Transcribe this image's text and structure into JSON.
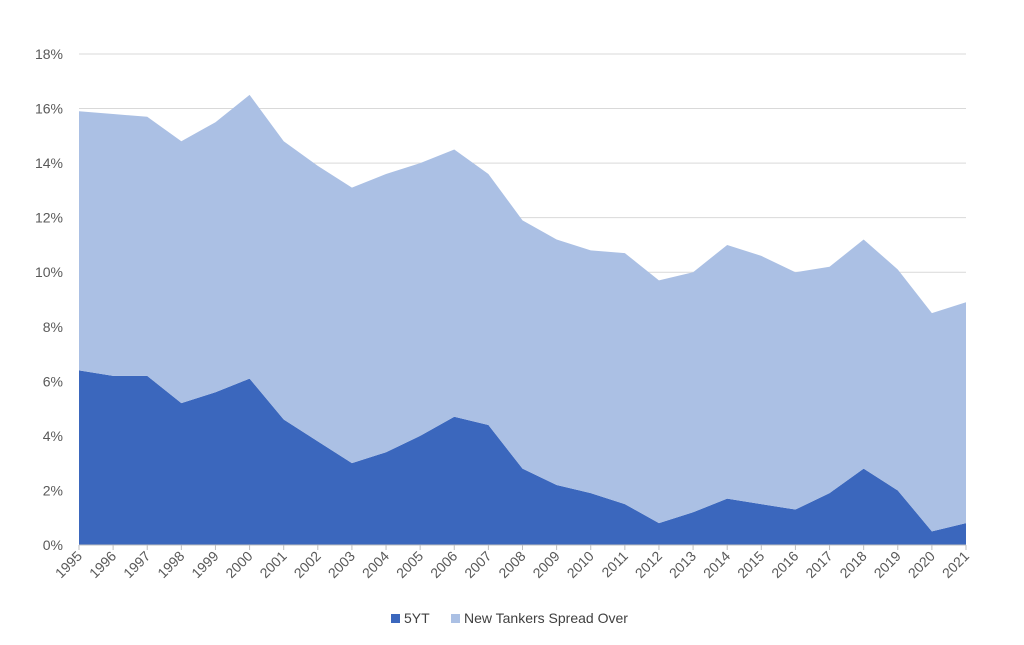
{
  "chart_data": {
    "type": "area",
    "stacked": true,
    "title": "",
    "xlabel": "",
    "ylabel": "",
    "ylim": [
      0,
      18
    ],
    "y_tick_values": [
      0,
      2,
      4,
      6,
      8,
      10,
      12,
      14,
      16,
      18
    ],
    "y_tick_labels": [
      "0%",
      "2%",
      "4%",
      "6%",
      "8%",
      "10%",
      "12%",
      "14%",
      "16%",
      "18%"
    ],
    "grid": true,
    "legend_position": "bottom",
    "categories": [
      "1995",
      "1996",
      "1997",
      "1998",
      "1999",
      "2000",
      "2001",
      "2002",
      "2003",
      "2004",
      "2005",
      "2006",
      "2007",
      "2008",
      "2009",
      "2010",
      "2011",
      "2012",
      "2013",
      "2014",
      "2015",
      "2016",
      "2017",
      "2018",
      "2019",
      "2020",
      "2021"
    ],
    "series": [
      {
        "name": "5YT",
        "color": "#3b67bd",
        "values": [
          6.4,
          6.2,
          6.2,
          5.2,
          5.6,
          6.1,
          4.6,
          3.8,
          3.0,
          3.4,
          4.0,
          4.7,
          4.4,
          2.8,
          2.2,
          1.9,
          1.5,
          0.8,
          1.2,
          1.7,
          1.5,
          1.3,
          1.9,
          2.8,
          2.0,
          0.5,
          0.8
        ]
      },
      {
        "name": "New Tankers Spread Over",
        "color": "#abc0e4",
        "values": [
          9.5,
          9.6,
          9.5,
          9.6,
          9.9,
          10.4,
          10.2,
          10.1,
          10.1,
          10.2,
          10.0,
          9.8,
          9.2,
          9.1,
          9.0,
          8.9,
          9.2,
          8.9,
          8.8,
          9.3,
          9.1,
          8.7,
          8.3,
          8.4,
          8.1,
          8.0,
          8.1
        ]
      }
    ]
  }
}
